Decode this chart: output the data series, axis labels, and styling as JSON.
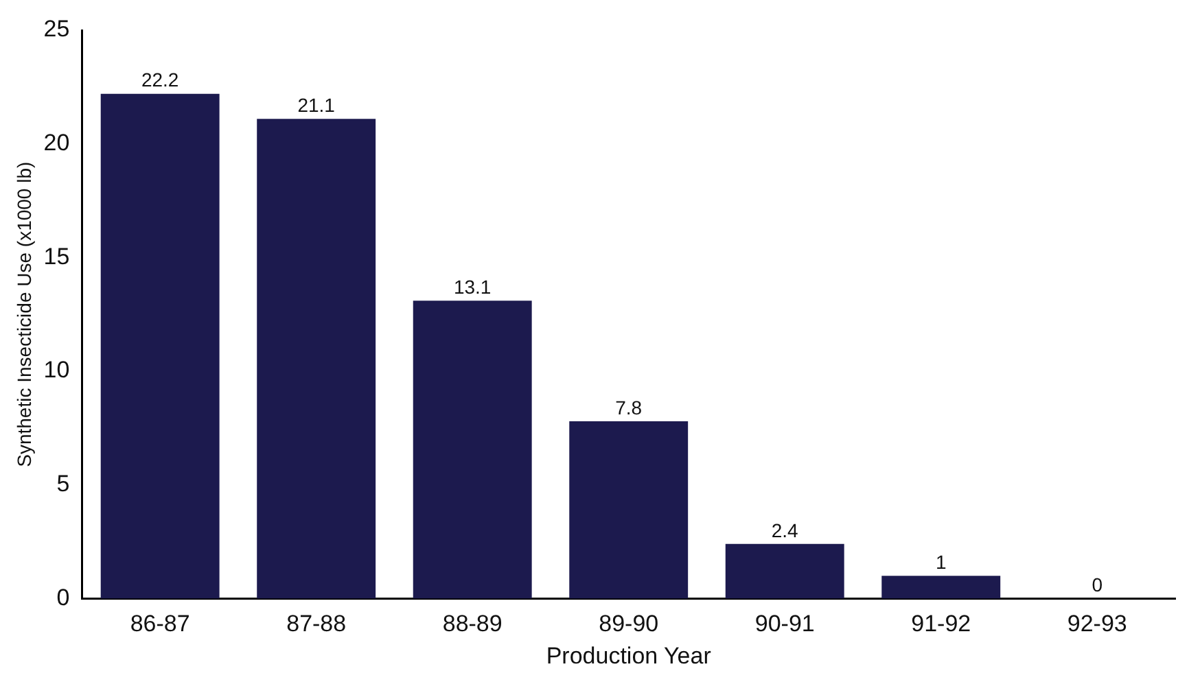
{
  "chart_data": {
    "type": "bar",
    "xlabel": "Production Year",
    "ylabel": "Synthetic Insecticide Use (x1000 lb)",
    "categories": [
      "86-87",
      "87-88",
      "88-89",
      "89-90",
      "90-91",
      "91-92",
      "92-93"
    ],
    "values": [
      22.2,
      21.1,
      13.1,
      7.8,
      2.4,
      1,
      0
    ],
    "color": "#1c1a4e",
    "ylim": [
      0,
      25
    ],
    "yticks": [
      0,
      5,
      10,
      15,
      20,
      25
    ],
    "grid": false,
    "legend": false,
    "data_labels": true
  }
}
